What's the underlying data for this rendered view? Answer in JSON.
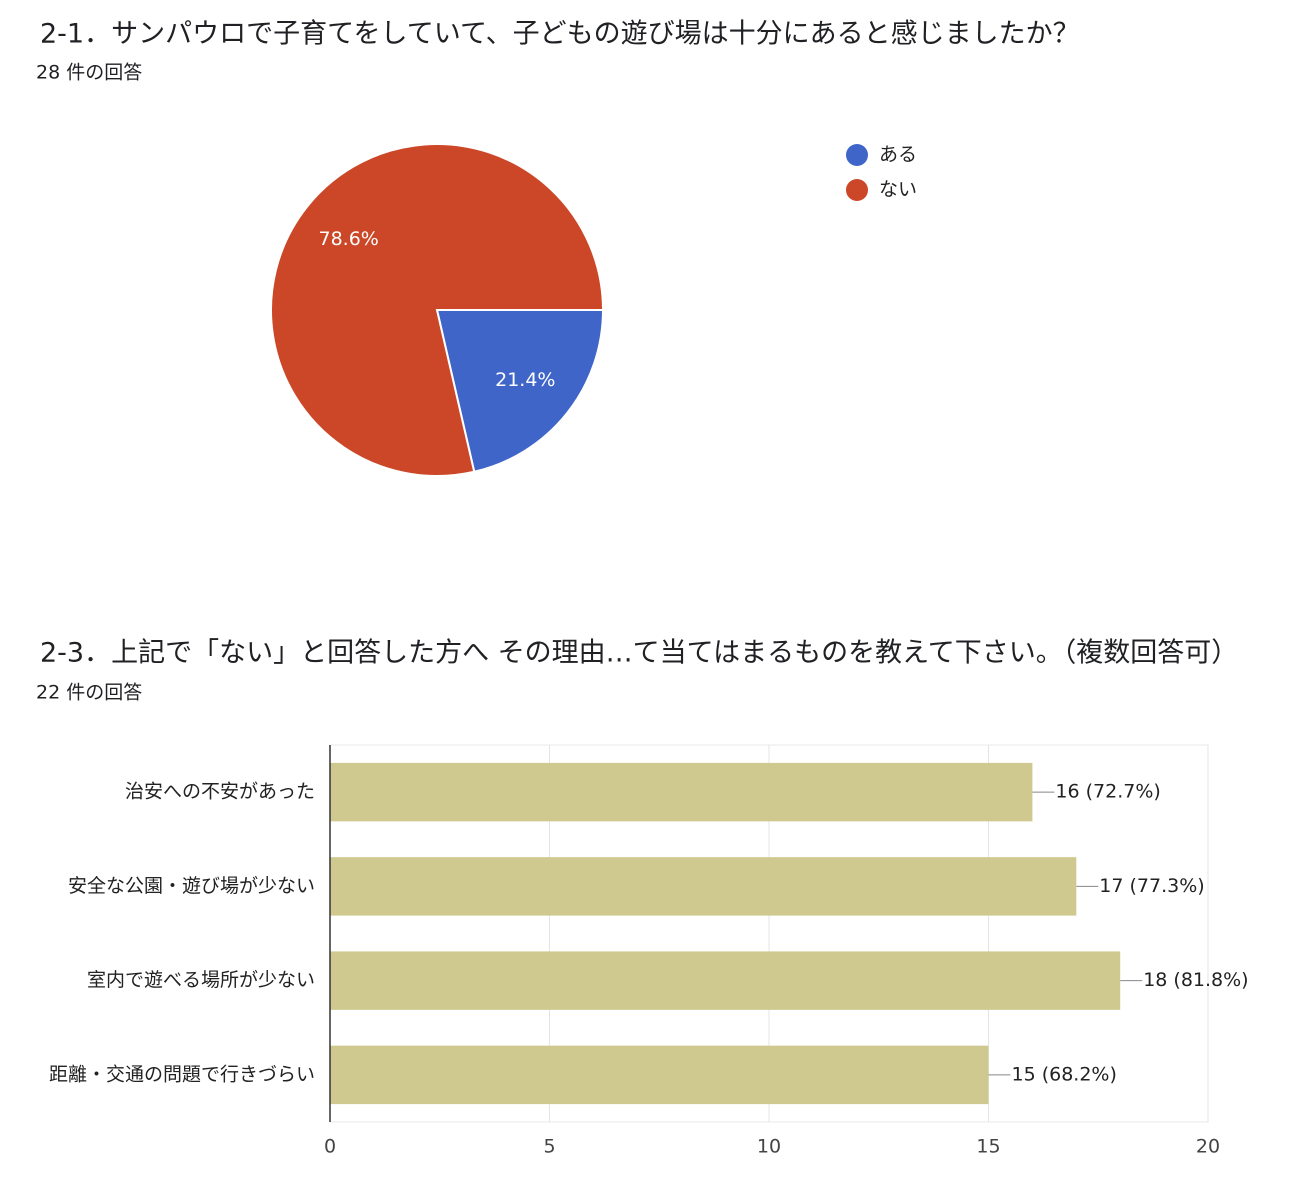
{
  "chart_data": [
    {
      "type": "pie",
      "title": "2-1．サンパウロで子育てをしていて、子どもの遊び場は十分にあると感じましたか？",
      "subtitle": "28 件の回答",
      "categories": [
        "ある",
        "ない"
      ],
      "values": [
        21.4,
        78.6
      ],
      "value_labels": [
        "21.4%",
        "78.6%"
      ],
      "colors": [
        "#3f65c8",
        "#cc4727"
      ],
      "legend": "right"
    },
    {
      "type": "hbar",
      "title": "2-3．上記で「ない」と回答した方へ その理由…て当てはまるものを教えて下さい。（複数回答可）",
      "subtitle": "22 件の回答",
      "categories": [
        "治安への不安があった",
        "安全な公園・遊び場が少ない",
        "室内で遊べる場所が少ない",
        "距離・交通の問題で行きづらい"
      ],
      "values": [
        16,
        17,
        18,
        15
      ],
      "value_labels": [
        "16 (72.7%)",
        "17 (77.3%)",
        "18 (81.8%)",
        "15 (68.2%)"
      ],
      "color": "#cfc98f",
      "xlim": [
        0,
        20
      ],
      "xticks": [
        0,
        5,
        10,
        15,
        20
      ],
      "grid": true
    }
  ]
}
